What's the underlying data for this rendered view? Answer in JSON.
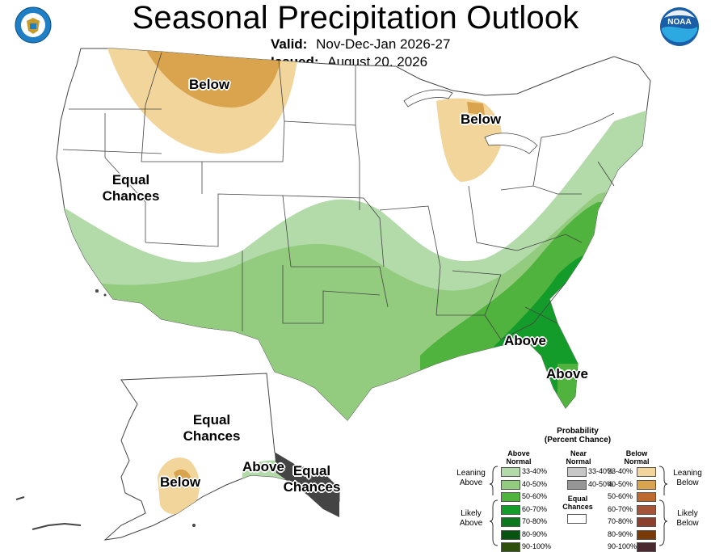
{
  "header": {
    "title": "Seasonal Precipitation Outlook",
    "valid_label": "Valid:",
    "valid_value": "Nov-Dec-Jan 2026-27",
    "issued_label": "Issued:",
    "issued_value": "August 20, 2026"
  },
  "map": {
    "labels": {
      "below_north": "Below",
      "below_michigan": "Below",
      "equal_west_1": "Equal",
      "equal_west_2": "Chances",
      "above_southeast": "Above",
      "above_florida": "Above",
      "equal_alaska_1": "Equal",
      "equal_alaska_2": "Chances",
      "below_alaska": "Below",
      "above_alaska": "Above",
      "equal_panhandle_1": "Equal",
      "equal_panhandle_2": "Chances"
    }
  },
  "legend": {
    "title_1": "Probability",
    "title_2": "(Percent Chance)",
    "above_header_1": "Above",
    "above_header_2": "Normal",
    "near_header_1": "Near",
    "near_header_2": "Normal",
    "below_header_1": "Below",
    "below_header_2": "Normal",
    "leaning_above_1": "Leaning",
    "leaning_above_2": "Above",
    "likely_above_1": "Likely",
    "likely_above_2": "Above",
    "leaning_below_1": "Leaning",
    "leaning_below_2": "Below",
    "likely_below_1": "Likely",
    "likely_below_2": "Below",
    "equal_1": "Equal",
    "equal_2": "Chances",
    "ranges": [
      "33-40%",
      "40-50%",
      "50-60%",
      "60-70%",
      "70-80%",
      "80-90%",
      "90-100%"
    ],
    "near_ranges": [
      "33-40%",
      "40-50%"
    ],
    "above_colors": [
      "#b3dbaa",
      "#93cc7e",
      "#4fb33d",
      "#149c2b",
      "#0b7a1c",
      "#075410",
      "#2f4f0c"
    ],
    "near_colors": [
      "#c8c8c8",
      "#969696"
    ],
    "below_colors": [
      "#f2d59b",
      "#d9a44d",
      "#bd6a2e",
      "#a65437",
      "#8c3f2c",
      "#7a3a07",
      "#4a2a2f"
    ]
  },
  "logos": {
    "left": "commerce-seal",
    "right": "noaa-logo"
  }
}
